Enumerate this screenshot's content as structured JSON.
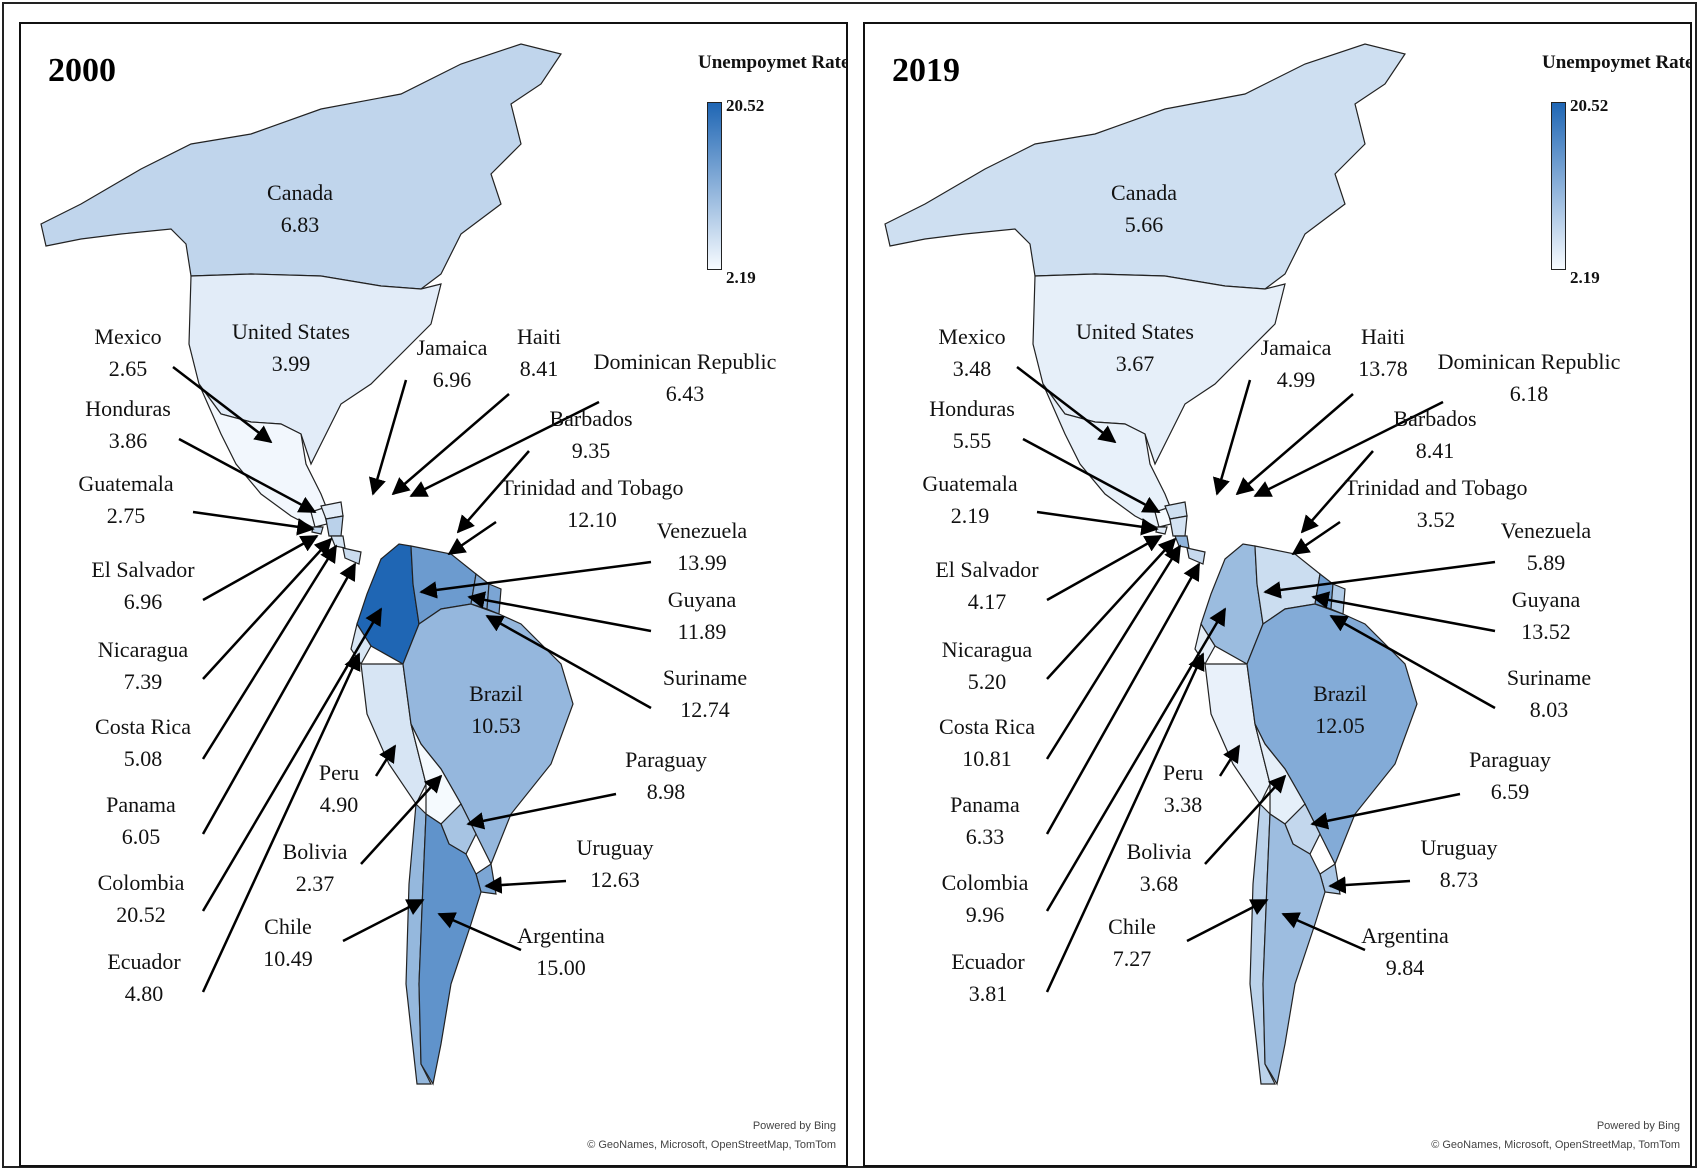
{
  "legend": {
    "title": "Unempoymet Rate",
    "max": "20.52",
    "min": "2.19",
    "color_low": "#f7fbff",
    "color_high": "#1f66b4"
  },
  "attribution": {
    "line1": "Powered by Bing",
    "line2": "© GeoNames, Microsoft, OpenStreetMap, TomTom"
  },
  "panels": [
    {
      "year": "2000",
      "countries": [
        {
          "name": "Canada",
          "value": "6.83"
        },
        {
          "name": "United States",
          "value": "3.99"
        },
        {
          "name": "Mexico",
          "value": "2.65"
        },
        {
          "name": "Honduras",
          "value": "3.86"
        },
        {
          "name": "Guatemala",
          "value": "2.75"
        },
        {
          "name": "El Salvador",
          "value": "6.96"
        },
        {
          "name": "Nicaragua",
          "value": "7.39"
        },
        {
          "name": "Costa Rica",
          "value": "5.08"
        },
        {
          "name": "Panama",
          "value": "6.05"
        },
        {
          "name": "Colombia",
          "value": "20.52"
        },
        {
          "name": "Ecuador",
          "value": "4.80"
        },
        {
          "name": "Jamaica",
          "value": "6.96"
        },
        {
          "name": "Haiti",
          "value": "8.41"
        },
        {
          "name": "Dominican Republic",
          "value": "6.43"
        },
        {
          "name": "Barbados",
          "value": "9.35"
        },
        {
          "name": "Trinidad and Tobago",
          "value": "12.10"
        },
        {
          "name": "Venezuela",
          "value": "13.99"
        },
        {
          "name": "Guyana",
          "value": "11.89"
        },
        {
          "name": "Suriname",
          "value": "12.74"
        },
        {
          "name": "Brazil",
          "value": "10.53"
        },
        {
          "name": "Peru",
          "value": "4.90"
        },
        {
          "name": "Bolivia",
          "value": "2.37"
        },
        {
          "name": "Paraguay",
          "value": "8.98"
        },
        {
          "name": "Uruguay",
          "value": "12.63"
        },
        {
          "name": "Chile",
          "value": "10.49"
        },
        {
          "name": "Argentina",
          "value": "15.00"
        }
      ]
    },
    {
      "year": "2019",
      "countries": [
        {
          "name": "Canada",
          "value": "5.66"
        },
        {
          "name": "United States",
          "value": "3.67"
        },
        {
          "name": "Mexico",
          "value": "3.48"
        },
        {
          "name": "Honduras",
          "value": "5.55"
        },
        {
          "name": "Guatemala",
          "value": "2.19"
        },
        {
          "name": "El Salvador",
          "value": "4.17"
        },
        {
          "name": "Nicaragua",
          "value": "5.20"
        },
        {
          "name": "Costa Rica",
          "value": "10.81"
        },
        {
          "name": "Panama",
          "value": "6.33"
        },
        {
          "name": "Colombia",
          "value": "9.96"
        },
        {
          "name": "Ecuador",
          "value": "3.81"
        },
        {
          "name": "Jamaica",
          "value": "4.99"
        },
        {
          "name": "Haiti",
          "value": "13.78"
        },
        {
          "name": "Dominican Republic",
          "value": "6.18"
        },
        {
          "name": "Barbados",
          "value": "8.41"
        },
        {
          "name": "Trinidad and Tobago",
          "value": "3.52"
        },
        {
          "name": "Venezuela",
          "value": "5.89"
        },
        {
          "name": "Guyana",
          "value": "13.52"
        },
        {
          "name": "Suriname",
          "value": "8.03"
        },
        {
          "name": "Brazil",
          "value": "12.05"
        },
        {
          "name": "Peru",
          "value": "3.38"
        },
        {
          "name": "Bolivia",
          "value": "3.68"
        },
        {
          "name": "Paraguay",
          "value": "6.59"
        },
        {
          "name": "Uruguay",
          "value": "8.73"
        },
        {
          "name": "Chile",
          "value": "7.27"
        },
        {
          "name": "Argentina",
          "value": "9.84"
        }
      ]
    }
  ]
}
